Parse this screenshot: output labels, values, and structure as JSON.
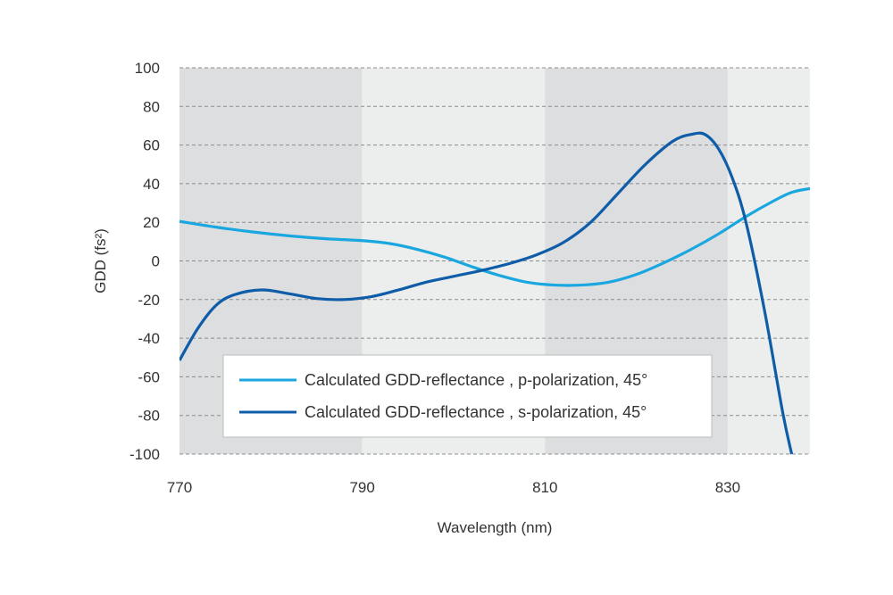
{
  "chart_data": {
    "type": "line",
    "title": "",
    "xlabel": "Wavelength (nm)",
    "ylabel": "GDD (fs²)",
    "xlim": [
      770,
      839
    ],
    "ylim": [
      -100,
      100
    ],
    "x_ticks": [
      770,
      790,
      810,
      830
    ],
    "y_ticks": [
      100,
      80,
      60,
      40,
      20,
      0,
      -20,
      -40,
      -60,
      -80,
      -100
    ],
    "x_tick_labels": [
      "770",
      "790",
      "810",
      "830"
    ],
    "y_tick_labels": [
      "100",
      "80",
      "60",
      "40",
      "20",
      "0",
      "-20",
      "-40",
      "-60",
      "-80",
      "-100"
    ],
    "grid": "horizontal dashed",
    "background_bands": [
      {
        "from": 770,
        "to": 790,
        "shade": "dark"
      },
      {
        "from": 790,
        "to": 810,
        "shade": "light"
      },
      {
        "from": 810,
        "to": 830,
        "shade": "dark"
      },
      {
        "from": 830,
        "to": 839,
        "shade": "light"
      }
    ],
    "legend_position": "bottom-center",
    "series": [
      {
        "name": "Calculated GDD-reflectance , p-polarization, 45°",
        "color": "#1aa7e0",
        "x": [
          770,
          774,
          778,
          782,
          786,
          790,
          793,
          796,
          799,
          802,
          805,
          808,
          811,
          814,
          817,
          820,
          823,
          826,
          829,
          832,
          835,
          837,
          839
        ],
        "y": [
          20.5,
          17.5,
          15,
          13,
          11.5,
          10.5,
          9,
          6,
          2,
          -3,
          -7.5,
          -11,
          -12.5,
          -12.5,
          -11,
          -7,
          -1,
          6,
          14,
          23,
          31,
          35.5,
          37.5
        ]
      },
      {
        "name": "Calculated GDD-reflectance , s-polarization, 45°",
        "color": "#0f5da8",
        "x": [
          770,
          772,
          774,
          776,
          779,
          782,
          785,
          788,
          791,
          794,
          797,
          800,
          803,
          806,
          809,
          812,
          815,
          818,
          821,
          824,
          826,
          827.5,
          829,
          830.5,
          832,
          834,
          836,
          837
        ],
        "y": [
          -51.5,
          -35,
          -23,
          -17.5,
          -15,
          -17,
          -19.5,
          -20,
          -18.5,
          -15,
          -11,
          -8,
          -5,
          -1.5,
          3,
          9.5,
          20,
          35,
          50,
          62,
          65.5,
          65.5,
          58,
          43,
          20,
          -25,
          -78,
          -100
        ]
      }
    ]
  }
}
